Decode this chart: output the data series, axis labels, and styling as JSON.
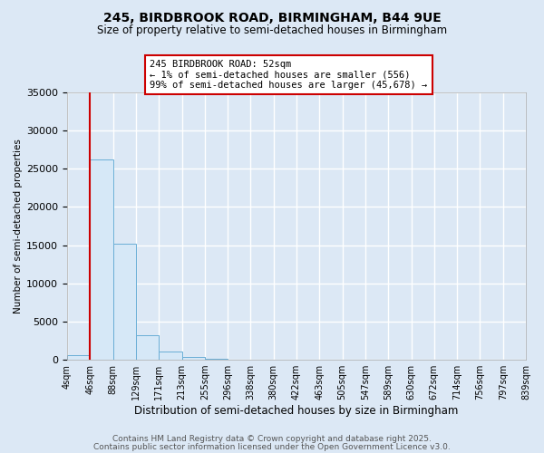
{
  "title1": "245, BIRDBROOK ROAD, BIRMINGHAM, B44 9UE",
  "title2": "Size of property relative to semi-detached houses in Birmingham",
  "xlabel": "Distribution of semi-detached houses by size in Birmingham",
  "ylabel": "Number of semi-detached properties",
  "bin_labels": [
    "4sqm",
    "46sqm",
    "88sqm",
    "129sqm",
    "171sqm",
    "213sqm",
    "255sqm",
    "296sqm",
    "338sqm",
    "380sqm",
    "422sqm",
    "463sqm",
    "505sqm",
    "547sqm",
    "589sqm",
    "630sqm",
    "672sqm",
    "714sqm",
    "756sqm",
    "797sqm",
    "839sqm"
  ],
  "bar_heights": [
    556,
    26200,
    15200,
    3200,
    1100,
    380,
    150,
    40,
    8,
    4,
    2,
    1,
    0,
    0,
    0,
    0,
    0,
    0,
    0,
    0
  ],
  "bar_color": "#d6e8f7",
  "bar_edge_color": "#6aaed6",
  "property_line_x": 1,
  "property_line_color": "#cc0000",
  "annotation_text": "245 BIRDBROOK ROAD: 52sqm\n← 1% of semi-detached houses are smaller (556)\n99% of semi-detached houses are larger (45,678) →",
  "annotation_box_color": "#ffffff",
  "annotation_box_edge": "#cc0000",
  "ylim": [
    0,
    35000
  ],
  "yticks": [
    0,
    5000,
    10000,
    15000,
    20000,
    25000,
    30000,
    35000
  ],
  "background_color": "#dce8f5",
  "plot_bg_color": "#dce8f5",
  "grid_color": "#ffffff",
  "footer1": "Contains HM Land Registry data © Crown copyright and database right 2025.",
  "footer2": "Contains public sector information licensed under the Open Government Licence v3.0."
}
